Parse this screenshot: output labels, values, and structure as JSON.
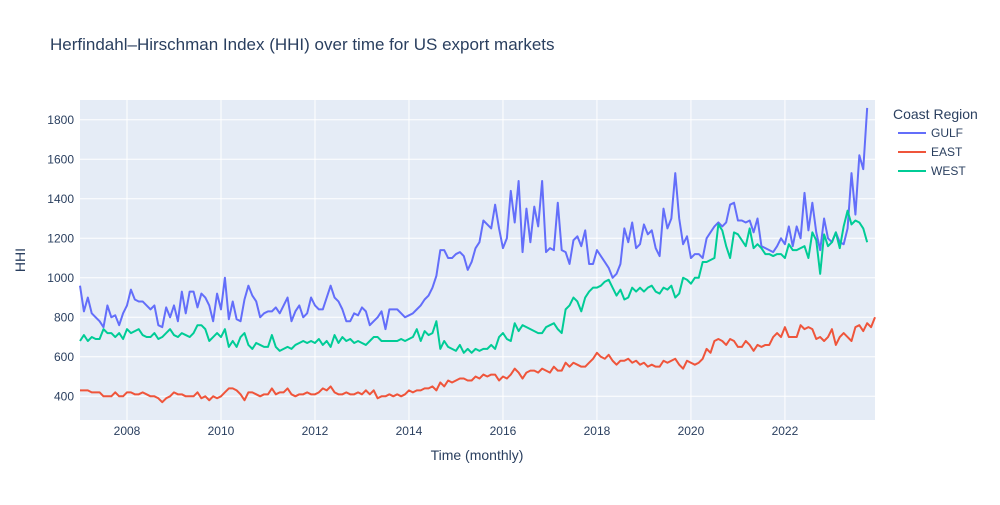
{
  "chart_data": {
    "type": "line",
    "title": "Herfindahl–Hirschman Index (HHI) over time for US export markets",
    "xlabel": "Time (monthly)",
    "ylabel": "HHI",
    "legend_title": "Coast Region",
    "legend_position": "right",
    "grid": true,
    "xlim": [
      "2007-01",
      "2023-12"
    ],
    "ylim": [
      280,
      1900
    ],
    "x_ticks": [
      "2008",
      "2010",
      "2012",
      "2014",
      "2016",
      "2018",
      "2020",
      "2022"
    ],
    "y_ticks": [
      400,
      600,
      800,
      1000,
      1200,
      1400,
      1600,
      1800
    ],
    "colors": {
      "GULF": "#636efa",
      "EAST": "#ef553b",
      "WEST": "#00cc96",
      "plot_bg": "#e5ecf6"
    },
    "x_start": "2007-01",
    "x_frequency": "monthly",
    "series": [
      {
        "name": "GULF",
        "values": [
          960,
          830,
          900,
          820,
          800,
          780,
          750,
          860,
          800,
          810,
          760,
          820,
          860,
          940,
          890,
          880,
          880,
          860,
          840,
          860,
          760,
          750,
          850,
          800,
          860,
          780,
          930,
          820,
          930,
          930,
          850,
          920,
          900,
          860,
          780,
          920,
          840,
          1000,
          790,
          880,
          790,
          780,
          890,
          960,
          910,
          880,
          800,
          820,
          830,
          830,
          850,
          820,
          860,
          900,
          780,
          830,
          860,
          800,
          820,
          900,
          860,
          840,
          840,
          900,
          960,
          900,
          880,
          840,
          780,
          780,
          820,
          810,
          850,
          830,
          760,
          780,
          800,
          830,
          740,
          840,
          840,
          840,
          820,
          800,
          810,
          820,
          840,
          860,
          890,
          910,
          950,
          1010,
          1140,
          1140,
          1100,
          1100,
          1120,
          1130,
          1110,
          1040,
          1080,
          1150,
          1180,
          1290,
          1270,
          1250,
          1370,
          1250,
          1150,
          1200,
          1440,
          1280,
          1490,
          1130,
          1350,
          1180,
          1360,
          1260,
          1490,
          1130,
          1150,
          1140,
          1380,
          1140,
          1130,
          1070,
          1190,
          1210,
          1160,
          1240,
          1070,
          1070,
          1140,
          1110,
          1080,
          1050,
          1000,
          1020,
          1070,
          1250,
          1180,
          1280,
          1150,
          1170,
          1270,
          1220,
          1240,
          1150,
          1110,
          1350,
          1250,
          1300,
          1530,
          1300,
          1170,
          1210,
          1100,
          1120,
          1120,
          1100,
          1200,
          1230,
          1260,
          1280,
          1260,
          1280,
          1370,
          1380,
          1290,
          1290,
          1280,
          1290,
          1230,
          1300,
          1160,
          1150,
          1140,
          1130,
          1160,
          1200,
          1170,
          1260,
          1160,
          1260,
          1200,
          1430,
          1240,
          1380,
          1230,
          1140,
          1300,
          1200,
          1180,
          1230,
          1180,
          1170,
          1250,
          1530,
          1320,
          1620,
          1550,
          1860
        ]
      },
      {
        "name": "EAST",
        "values": [
          430,
          430,
          430,
          420,
          420,
          420,
          400,
          400,
          400,
          420,
          400,
          400,
          420,
          420,
          410,
          410,
          420,
          410,
          400,
          400,
          390,
          370,
          390,
          400,
          420,
          410,
          410,
          400,
          400,
          400,
          420,
          390,
          400,
          380,
          400,
          390,
          400,
          420,
          440,
          440,
          430,
          410,
          380,
          420,
          420,
          410,
          400,
          410,
          410,
          440,
          410,
          420,
          420,
          440,
          410,
          400,
          410,
          410,
          420,
          410,
          410,
          420,
          440,
          430,
          450,
          420,
          410,
          410,
          420,
          410,
          410,
          420,
          410,
          430,
          410,
          430,
          390,
          400,
          400,
          410,
          400,
          410,
          400,
          410,
          430,
          420,
          430,
          430,
          440,
          440,
          450,
          430,
          470,
          450,
          480,
          470,
          480,
          490,
          490,
          480,
          480,
          500,
          490,
          510,
          500,
          510,
          510,
          480,
          500,
          490,
          510,
          540,
          520,
          490,
          520,
          530,
          530,
          520,
          540,
          530,
          520,
          550,
          530,
          530,
          570,
          550,
          570,
          560,
          550,
          550,
          570,
          590,
          620,
          600,
          590,
          610,
          580,
          560,
          580,
          580,
          590,
          570,
          580,
          560,
          570,
          550,
          560,
          550,
          550,
          580,
          570,
          580,
          590,
          560,
          540,
          580,
          570,
          560,
          570,
          590,
          640,
          620,
          680,
          690,
          680,
          660,
          690,
          680,
          650,
          650,
          680,
          660,
          630,
          660,
          650,
          660,
          660,
          700,
          720,
          700,
          750,
          700,
          700,
          700,
          760,
          740,
          750,
          740,
          690,
          700,
          680,
          700,
          740,
          660,
          700,
          720,
          700,
          680,
          750,
          760,
          730,
          770,
          750,
          800
        ]
      },
      {
        "name": "WEST",
        "values": [
          680,
          710,
          680,
          700,
          690,
          690,
          740,
          720,
          720,
          700,
          720,
          690,
          740,
          720,
          730,
          740,
          710,
          700,
          700,
          720,
          690,
          700,
          720,
          740,
          710,
          700,
          720,
          710,
          700,
          720,
          760,
          760,
          740,
          680,
          700,
          720,
          700,
          740,
          650,
          680,
          650,
          700,
          720,
          660,
          640,
          670,
          660,
          650,
          650,
          710,
          650,
          630,
          640,
          650,
          640,
          660,
          670,
          680,
          670,
          680,
          670,
          690,
          660,
          680,
          650,
          710,
          670,
          700,
          680,
          690,
          670,
          680,
          670,
          660,
          680,
          700,
          700,
          680,
          680,
          680,
          680,
          680,
          690,
          680,
          690,
          700,
          740,
          680,
          730,
          710,
          720,
          780,
          640,
          680,
          650,
          640,
          630,
          660,
          620,
          640,
          620,
          640,
          630,
          640,
          640,
          660,
          640,
          700,
          720,
          690,
          680,
          770,
          730,
          760,
          750,
          740,
          730,
          720,
          720,
          750,
          760,
          770,
          740,
          720,
          840,
          860,
          900,
          880,
          830,
          900,
          930,
          950,
          950,
          960,
          980,
          990,
          950,
          910,
          940,
          890,
          900,
          950,
          930,
          950,
          930,
          950,
          960,
          930,
          920,
          950,
          940,
          960,
          900,
          920,
          1000,
          990,
          970,
          1000,
          1000,
          1080,
          1080,
          1090,
          1100,
          1270,
          1240,
          1160,
          1100,
          1230,
          1220,
          1190,
          1160,
          1250,
          1150,
          1170,
          1150,
          1120,
          1120,
          1110,
          1120,
          1120,
          1100,
          1170,
          1140,
          1140,
          1150,
          1160,
          1100,
          1230,
          1190,
          1020,
          1220,
          1160,
          1180,
          1230,
          1150,
          1260,
          1340,
          1270,
          1290,
          1280,
          1250,
          1180
        ]
      }
    ]
  }
}
